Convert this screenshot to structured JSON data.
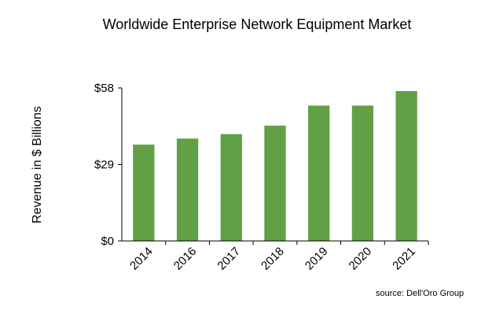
{
  "chart_data": {
    "type": "bar",
    "title": "Worldwide Enterprise Network Equipment Market",
    "ylabel": "Revenue in $ Billions",
    "xlabel": "",
    "categories": [
      "2014",
      "2016",
      "2017",
      "2018",
      "2019",
      "2020",
      "2021"
    ],
    "values": [
      36.5,
      38.8,
      40.5,
      43.7,
      51.3,
      51.3,
      56.8
    ],
    "ylim": [
      0,
      58
    ],
    "yticks": [
      {
        "value": 0,
        "label": "$0"
      },
      {
        "value": 29,
        "label": "$29"
      },
      {
        "value": 58,
        "label": "$58"
      }
    ],
    "bar_color": "#62a046",
    "grid": false,
    "legend": "none",
    "source": "source: Dell'Oro Group"
  }
}
